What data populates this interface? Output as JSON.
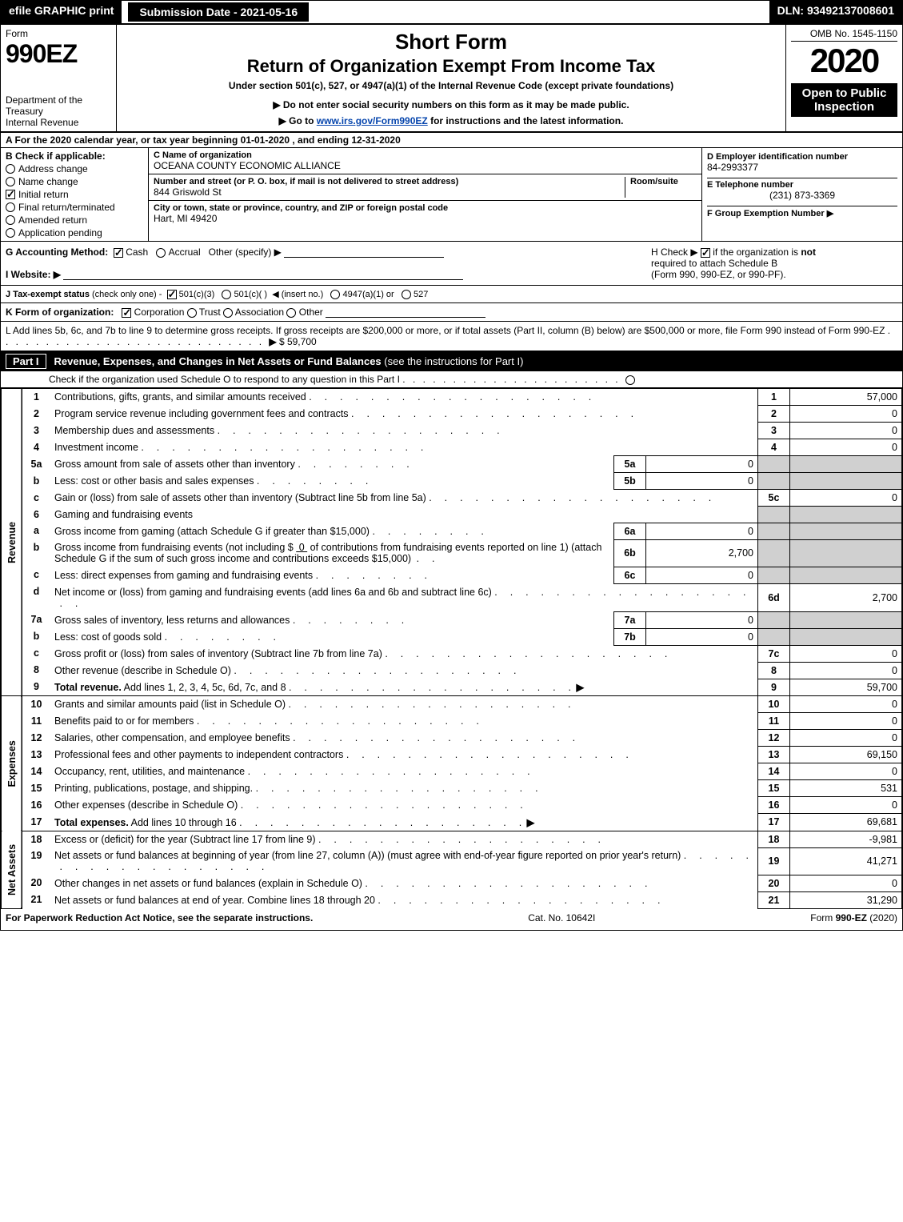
{
  "topbar": {
    "efile": "efile GRAPHIC print",
    "submission_label": "Submission Date - 2021-05-16",
    "dln": "DLN: 93492137008601"
  },
  "header": {
    "form_word": "Form",
    "form_number": "990EZ",
    "dept": "Department of the Treasury\nInternal Revenue",
    "title1": "Short Form",
    "title2": "Return of Organization Exempt From Income Tax",
    "subtitle": "Under section 501(c), 527, or 4947(a)(1) of the Internal Revenue Code (except private foundations)",
    "note1": "▶ Do not enter social security numbers on this form as it may be made public.",
    "note2_pre": "▶ Go to ",
    "note2_link": "www.irs.gov/Form990EZ",
    "note2_post": " for instructions and the latest information.",
    "omb": "OMB No. 1545-1150",
    "year": "2020",
    "open": "Open to Public Inspection"
  },
  "taxyear": "A  For the 2020 calendar year, or tax year beginning 01-01-2020 , and ending 12-31-2020",
  "entity": {
    "b_header": "B  Check if applicable:",
    "b_options": [
      {
        "label": "Address change",
        "checked": false,
        "type": "radio"
      },
      {
        "label": "Name change",
        "checked": false,
        "type": "radio"
      },
      {
        "label": "Initial return",
        "checked": true,
        "type": "check"
      },
      {
        "label": "Final return/terminated",
        "checked": false,
        "type": "radio"
      },
      {
        "label": "Amended return",
        "checked": false,
        "type": "radio"
      },
      {
        "label": "Application pending",
        "checked": false,
        "type": "radio"
      }
    ],
    "c_name_label": "C Name of organization",
    "c_name": "OCEANA COUNTY ECONOMIC ALLIANCE",
    "c_street_label": "Number and street (or P. O. box, if mail is not delivered to street address)",
    "c_room_label": "Room/suite",
    "c_street": "844 Griswold St",
    "c_city_label": "City or town, state or province, country, and ZIP or foreign postal code",
    "c_city": "Hart, MI  49420",
    "d_label": "D Employer identification number",
    "d_value": "84-2993377",
    "e_label": "E Telephone number",
    "e_value": "(231) 873-3369",
    "f_label": "F Group Exemption Number  ▶",
    "f_value": ""
  },
  "gh": {
    "g_label": "G Accounting Method:",
    "g_cash": "Cash",
    "g_accrual": "Accrual",
    "g_other": "Other (specify) ▶",
    "h_text1": "H  Check ▶",
    "h_text2": "if the organization is",
    "h_not": "not",
    "h_text3": "required to attach Schedule B",
    "h_text4": "(Form 990, 990-EZ, or 990-PF)."
  },
  "i": {
    "label": "I Website: ▶"
  },
  "j": {
    "label": "J Tax-exempt status",
    "note": "(check only one) -",
    "opt1": "501(c)(3)",
    "opt2": "501(c)(  )",
    "opt2_note": "◀ (insert no.)",
    "opt3": "4947(a)(1) or",
    "opt4": "527"
  },
  "k": {
    "label": "K Form of organization:",
    "opts": [
      "Corporation",
      "Trust",
      "Association",
      "Other"
    ]
  },
  "l": {
    "text": "L Add lines 5b, 6c, and 7b to line 9 to determine gross receipts. If gross receipts are $200,000 or more, or if total assets (Part II, column (B) below) are $500,000 or more, file Form 990 instead of Form 990-EZ",
    "arrow": "▶",
    "value": "$ 59,700"
  },
  "part1": {
    "tag": "Part I",
    "title": "Revenue, Expenses, and Changes in Net Assets or Fund Balances",
    "title_note": "(see the instructions for Part I)",
    "sub": "Check if the organization used Schedule O to respond to any question in this Part I",
    "sub_box": "☐"
  },
  "sections": {
    "revenue": "Revenue",
    "expenses": "Expenses",
    "netassets": "Net Assets"
  },
  "lines": {
    "1": {
      "n": "1",
      "desc": "Contributions, gifts, grants, and similar amounts received",
      "box": "1",
      "val": "57,000"
    },
    "2": {
      "n": "2",
      "desc": "Program service revenue including government fees and contracts",
      "box": "2",
      "val": "0"
    },
    "3": {
      "n": "3",
      "desc": "Membership dues and assessments",
      "box": "3",
      "val": "0"
    },
    "4": {
      "n": "4",
      "desc": "Investment income",
      "box": "4",
      "val": "0"
    },
    "5a": {
      "n": "5a",
      "desc": "Gross amount from sale of assets other than inventory",
      "ibox": "5a",
      "ival": "0"
    },
    "5b": {
      "n": "b",
      "desc": "Less: cost or other basis and sales expenses",
      "ibox": "5b",
      "ival": "0"
    },
    "5c": {
      "n": "c",
      "desc": "Gain or (loss) from sale of assets other than inventory (Subtract line 5b from line 5a)",
      "box": "5c",
      "val": "0"
    },
    "6": {
      "n": "6",
      "desc": "Gaming and fundraising events"
    },
    "6a": {
      "n": "a",
      "desc": "Gross income from gaming (attach Schedule G if greater than $15,000)",
      "ibox": "6a",
      "ival": "0"
    },
    "6b": {
      "n": "b",
      "desc1": "Gross income from fundraising events (not including $",
      "desc1v": "0",
      "desc2": "of contributions from fundraising events reported on line 1) (attach Schedule G if the sum of such gross income and contributions exceeds $15,000)",
      "ibox": "6b",
      "ival": "2,700"
    },
    "6c": {
      "n": "c",
      "desc": "Less: direct expenses from gaming and fundraising events",
      "ibox": "6c",
      "ival": "0"
    },
    "6d": {
      "n": "d",
      "desc": "Net income or (loss) from gaming and fundraising events (add lines 6a and 6b and subtract line 6c)",
      "box": "6d",
      "val": "2,700"
    },
    "7a": {
      "n": "7a",
      "desc": "Gross sales of inventory, less returns and allowances",
      "ibox": "7a",
      "ival": "0"
    },
    "7b": {
      "n": "b",
      "desc": "Less: cost of goods sold",
      "ibox": "7b",
      "ival": "0"
    },
    "7c": {
      "n": "c",
      "desc": "Gross profit or (loss) from sales of inventory (Subtract line 7b from line 7a)",
      "box": "7c",
      "val": "0"
    },
    "8": {
      "n": "8",
      "desc": "Other revenue (describe in Schedule O)",
      "box": "8",
      "val": "0"
    },
    "9": {
      "n": "9",
      "desc": "Total revenue.",
      "desc2": "Add lines 1, 2, 3, 4, 5c, 6d, 7c, and 8",
      "arrow": "▶",
      "box": "9",
      "val": "59,700",
      "bold": true
    },
    "10": {
      "n": "10",
      "desc": "Grants and similar amounts paid (list in Schedule O)",
      "box": "10",
      "val": "0"
    },
    "11": {
      "n": "11",
      "desc": "Benefits paid to or for members",
      "box": "11",
      "val": "0"
    },
    "12": {
      "n": "12",
      "desc": "Salaries, other compensation, and employee benefits",
      "box": "12",
      "val": "0"
    },
    "13": {
      "n": "13",
      "desc": "Professional fees and other payments to independent contractors",
      "box": "13",
      "val": "69,150"
    },
    "14": {
      "n": "14",
      "desc": "Occupancy, rent, utilities, and maintenance",
      "box": "14",
      "val": "0"
    },
    "15": {
      "n": "15",
      "desc": "Printing, publications, postage, and shipping.",
      "box": "15",
      "val": "531"
    },
    "16": {
      "n": "16",
      "desc": "Other expenses (describe in Schedule O)",
      "box": "16",
      "val": "0"
    },
    "17": {
      "n": "17",
      "desc": "Total expenses.",
      "desc2": "Add lines 10 through 16",
      "arrow": "▶",
      "box": "17",
      "val": "69,681",
      "bold": true
    },
    "18": {
      "n": "18",
      "desc": "Excess or (deficit) for the year (Subtract line 17 from line 9)",
      "box": "18",
      "val": "-9,981"
    },
    "19": {
      "n": "19",
      "desc": "Net assets or fund balances at beginning of year (from line 27, column (A)) (must agree with end-of-year figure reported on prior year's return)",
      "box": "19",
      "val": "41,271"
    },
    "20": {
      "n": "20",
      "desc": "Other changes in net assets or fund balances (explain in Schedule O)",
      "box": "20",
      "val": "0"
    },
    "21": {
      "n": "21",
      "desc": "Net assets or fund balances at end of year. Combine lines 18 through 20",
      "box": "21",
      "val": "31,290"
    }
  },
  "footer": {
    "left": "For Paperwork Reduction Act Notice, see the separate instructions.",
    "center": "Cat. No. 10642I",
    "right_pre": "Form ",
    "right_form": "990-EZ",
    "right_post": " (2020)"
  },
  "colors": {
    "black": "#000000",
    "white": "#ffffff",
    "shade": "#d0d0d0",
    "link": "#0645ad"
  }
}
